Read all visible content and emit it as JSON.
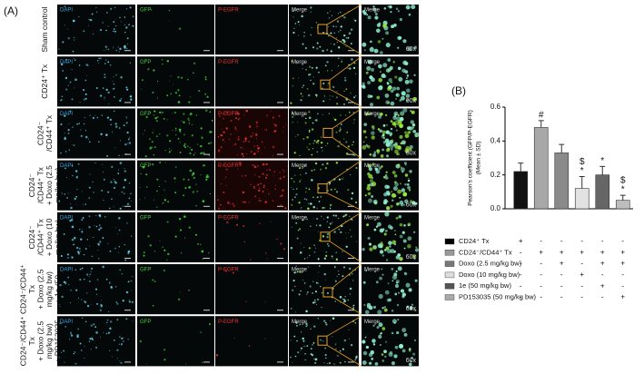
{
  "panel_a": {
    "label": "(A)",
    "column_labels": [
      "DAPI",
      "GFP",
      "P-EGFR",
      "Merge",
      "Merge"
    ],
    "zoom_label": "60x",
    "rows": [
      {
        "label": [
          "Sham control"
        ]
      },
      {
        "label": [
          "CD24⁺ Tx"
        ]
      },
      {
        "label": [
          "CD24⁻",
          "/CD44⁺ Tx"
        ]
      },
      {
        "label": [
          "CD24⁻",
          "/CD44⁺ Tx",
          "+ Doxo (2.5",
          "mg/kg bw)"
        ]
      },
      {
        "label": [
          "CD24⁻",
          "/CD44⁺ Tx",
          "+ Doxo (10",
          "mg/kg bw)"
        ]
      },
      {
        "label": [
          "CD24⁻/CD44⁺",
          "Tx",
          "+ Doxo (2.5",
          "mg/kg bw)",
          "+ 1e (50",
          "mg/kg bw)"
        ]
      },
      {
        "label": [
          "CD24⁻/CD44⁺",
          "Tx",
          "+ Doxo (2.5",
          "mg/kg bw)",
          "+ PD153035",
          "(50 mg/kg bw)"
        ]
      }
    ]
  },
  "chart_data": {
    "type": "bar",
    "panel_label": "(B)",
    "y_label": [
      "Pearson's coefficient (GFP/P-EGFR)",
      "(Mean ± SD)"
    ],
    "values": [
      0.22,
      0.48,
      0.33,
      0.12,
      0.2,
      0.05
    ],
    "errors": [
      0.05,
      0.04,
      0.05,
      0.07,
      0.05,
      0.03
    ],
    "colors": [
      "#111111",
      "#a8a8a8",
      "#8a8a8a",
      "#e2e2e2",
      "#666666",
      "#bdbdbd"
    ],
    "annotations": [
      null,
      [
        "#"
      ],
      null,
      [
        "$",
        "*"
      ],
      [
        "*"
      ],
      [
        "$",
        "*"
      ]
    ],
    "ylim": [
      0,
      0.6
    ],
    "yticks": [
      {
        "value": 0,
        "label": "0.0"
      },
      0.2,
      0.4,
      0.6
    ],
    "treatments": [
      {
        "label": "CD24⁺ Tx",
        "color": "#000000",
        "marks": [
          "+",
          "-",
          "-",
          "-",
          "-",
          "-"
        ]
      },
      {
        "label": "CD24⁻/CD44⁺ Tx",
        "color": "#999999",
        "marks": [
          "-",
          "+",
          "+",
          "+",
          "+",
          "+"
        ]
      },
      {
        "label": "Doxo (2.5 mg/kg bw)",
        "color": "#777777",
        "marks": [
          "-",
          "-",
          "+",
          "-",
          "+",
          "+"
        ]
      },
      {
        "label": "Doxo (10 mg/kg bw)",
        "color": "#dddddd",
        "marks": [
          "-",
          "-",
          "-",
          "+",
          "-",
          "-"
        ]
      },
      {
        "label": "1e (50 mg/kg bw)",
        "color": "#555555",
        "marks": [
          "-",
          "-",
          "-",
          "-",
          "+",
          "-"
        ]
      },
      {
        "label": "PD153035 (50 mg/kg bw)",
        "color": "#aaaaaa",
        "marks": [
          "-",
          "-",
          "-",
          "-",
          "-",
          "+"
        ]
      }
    ]
  }
}
